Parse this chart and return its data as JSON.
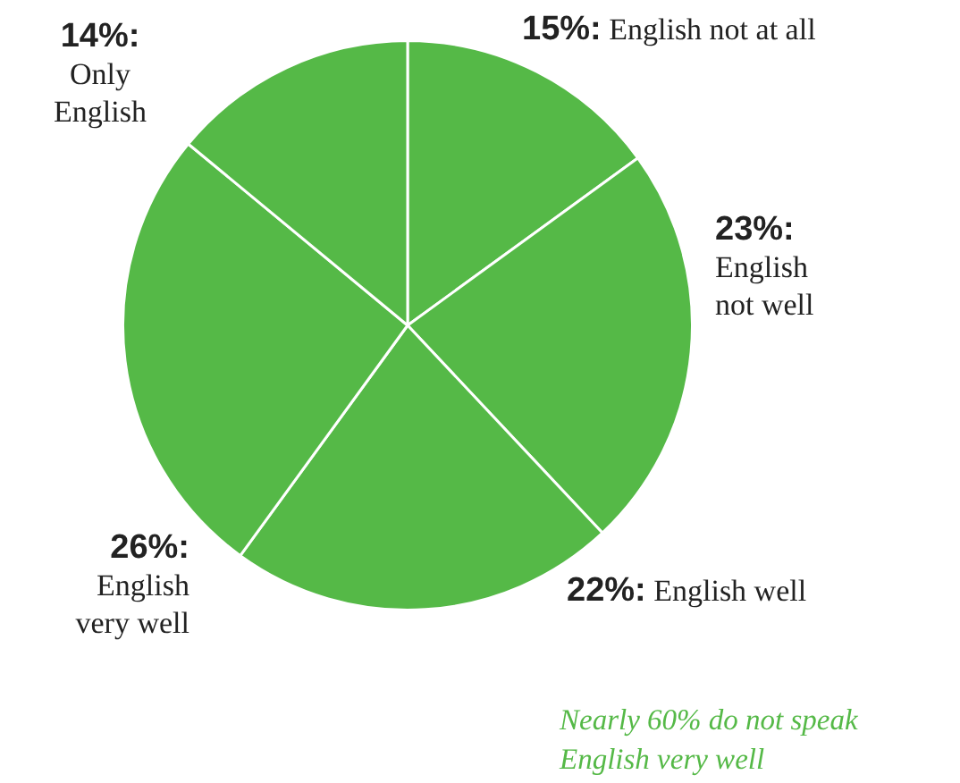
{
  "chart_data": {
    "type": "pie",
    "categories": [
      "English not at all",
      "English not well",
      "English well",
      "English very well",
      "Only English"
    ],
    "values": [
      15,
      23,
      22,
      26,
      14
    ],
    "value_labels": [
      "15%:",
      "23%:",
      "22%:",
      "26%:",
      "14%:"
    ],
    "colors": [
      "#55b947",
      "#55b947",
      "#55b947",
      "#55b947",
      "#55b947"
    ],
    "annotations": [
      "Nearly 60% do not speak English very well"
    ],
    "legend": false
  }
}
